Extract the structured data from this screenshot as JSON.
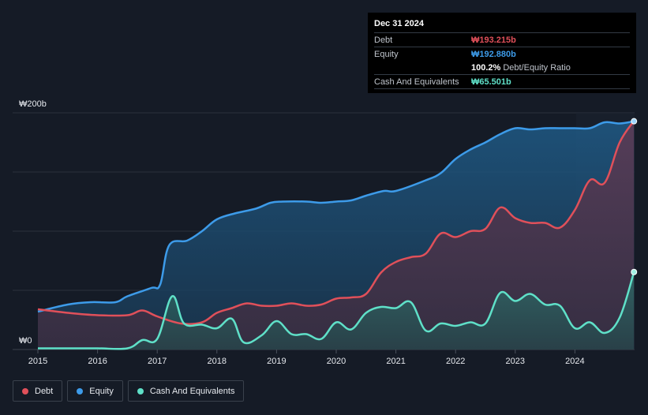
{
  "tooltip": {
    "date": "Dec 31 2024",
    "debt_label": "Debt",
    "debt_value": "₩193.215b",
    "equity_label": "Equity",
    "equity_value": "₩192.880b",
    "ratio_value": "100.2%",
    "ratio_label": "Debt/Equity Ratio",
    "cash_label": "Cash And Equivalents",
    "cash_value": "₩65.501b"
  },
  "legend": {
    "debt": "Debt",
    "equity": "Equity",
    "cash": "Cash And Equivalents"
  },
  "colors": {
    "debt": "#e0505a",
    "equity": "#3d9be9",
    "cash": "#5fe0c8",
    "background": "#151b26"
  },
  "chart_data": {
    "type": "area",
    "y_axis_top_label": "₩200b",
    "y_axis_bottom_label": "₩0",
    "ylim": [
      0,
      200
    ],
    "xlim": [
      2015.0,
      2025.0
    ],
    "x_ticks": [
      "2015",
      "2016",
      "2017",
      "2018",
      "2019",
      "2020",
      "2021",
      "2022",
      "2023",
      "2024"
    ],
    "x_tick_values": [
      2015,
      2016,
      2017,
      2018,
      2019,
      2020,
      2021,
      2022,
      2023,
      2024
    ],
    "grid": true,
    "series": [
      {
        "name": "Equity",
        "points": [
          [
            2015.0,
            32
          ],
          [
            2015.5,
            38
          ],
          [
            2015.9,
            40
          ],
          [
            2016.3,
            40
          ],
          [
            2016.5,
            45
          ],
          [
            2016.9,
            52
          ],
          [
            2017.05,
            55
          ],
          [
            2017.2,
            88
          ],
          [
            2017.5,
            92
          ],
          [
            2017.75,
            100
          ],
          [
            2018.0,
            110
          ],
          [
            2018.3,
            115
          ],
          [
            2018.65,
            119
          ],
          [
            2018.9,
            124
          ],
          [
            2019.1,
            125
          ],
          [
            2019.5,
            125
          ],
          [
            2019.75,
            124
          ],
          [
            2020.0,
            125
          ],
          [
            2020.25,
            126
          ],
          [
            2020.5,
            130
          ],
          [
            2020.8,
            134
          ],
          [
            2021.0,
            134
          ],
          [
            2021.5,
            143
          ],
          [
            2021.75,
            149
          ],
          [
            2022.0,
            161
          ],
          [
            2022.25,
            169
          ],
          [
            2022.5,
            175
          ],
          [
            2022.75,
            182
          ],
          [
            2023.0,
            187
          ],
          [
            2023.25,
            186
          ],
          [
            2023.5,
            187
          ],
          [
            2023.75,
            187
          ],
          [
            2024.0,
            187
          ],
          [
            2024.25,
            187
          ],
          [
            2024.5,
            192
          ],
          [
            2024.75,
            191
          ],
          [
            2024.99,
            192.88
          ]
        ]
      },
      {
        "name": "Debt",
        "points": [
          [
            2015.0,
            34
          ],
          [
            2015.5,
            31
          ],
          [
            2016.0,
            29
          ],
          [
            2016.5,
            29
          ],
          [
            2016.75,
            33
          ],
          [
            2017.0,
            28
          ],
          [
            2017.4,
            22
          ],
          [
            2017.75,
            23
          ],
          [
            2018.0,
            31
          ],
          [
            2018.25,
            35
          ],
          [
            2018.5,
            39
          ],
          [
            2018.75,
            37
          ],
          [
            2019.0,
            37
          ],
          [
            2019.25,
            39
          ],
          [
            2019.5,
            37
          ],
          [
            2019.75,
            38
          ],
          [
            2020.0,
            43
          ],
          [
            2020.25,
            44
          ],
          [
            2020.5,
            47
          ],
          [
            2020.75,
            65
          ],
          [
            2021.0,
            74
          ],
          [
            2021.25,
            78
          ],
          [
            2021.5,
            81
          ],
          [
            2021.75,
            98
          ],
          [
            2022.0,
            95
          ],
          [
            2022.25,
            100
          ],
          [
            2022.5,
            102
          ],
          [
            2022.75,
            120
          ],
          [
            2023.0,
            111
          ],
          [
            2023.25,
            107
          ],
          [
            2023.5,
            107
          ],
          [
            2023.75,
            103
          ],
          [
            2024.0,
            118
          ],
          [
            2024.25,
            143
          ],
          [
            2024.5,
            141
          ],
          [
            2024.75,
            175
          ],
          [
            2024.99,
            193.215
          ]
        ]
      },
      {
        "name": "Cash And Equivalents",
        "points": [
          [
            2015.0,
            1
          ],
          [
            2015.5,
            1
          ],
          [
            2016.0,
            1
          ],
          [
            2016.5,
            1
          ],
          [
            2016.75,
            8
          ],
          [
            2017.0,
            9
          ],
          [
            2017.25,
            45
          ],
          [
            2017.45,
            22
          ],
          [
            2017.75,
            21
          ],
          [
            2018.0,
            18
          ],
          [
            2018.25,
            26
          ],
          [
            2018.45,
            6
          ],
          [
            2018.75,
            12
          ],
          [
            2019.0,
            24
          ],
          [
            2019.25,
            13
          ],
          [
            2019.5,
            13
          ],
          [
            2019.75,
            9
          ],
          [
            2020.0,
            23
          ],
          [
            2020.25,
            17
          ],
          [
            2020.5,
            31
          ],
          [
            2020.75,
            36
          ],
          [
            2021.0,
            35
          ],
          [
            2021.25,
            40
          ],
          [
            2021.5,
            16
          ],
          [
            2021.75,
            22
          ],
          [
            2022.0,
            20
          ],
          [
            2022.25,
            23
          ],
          [
            2022.5,
            22
          ],
          [
            2022.75,
            48
          ],
          [
            2023.0,
            41
          ],
          [
            2023.25,
            47
          ],
          [
            2023.5,
            38
          ],
          [
            2023.75,
            37
          ],
          [
            2024.0,
            18
          ],
          [
            2024.25,
            23
          ],
          [
            2024.5,
            14
          ],
          [
            2024.75,
            27
          ],
          [
            2024.99,
            65.501
          ]
        ]
      }
    ]
  }
}
